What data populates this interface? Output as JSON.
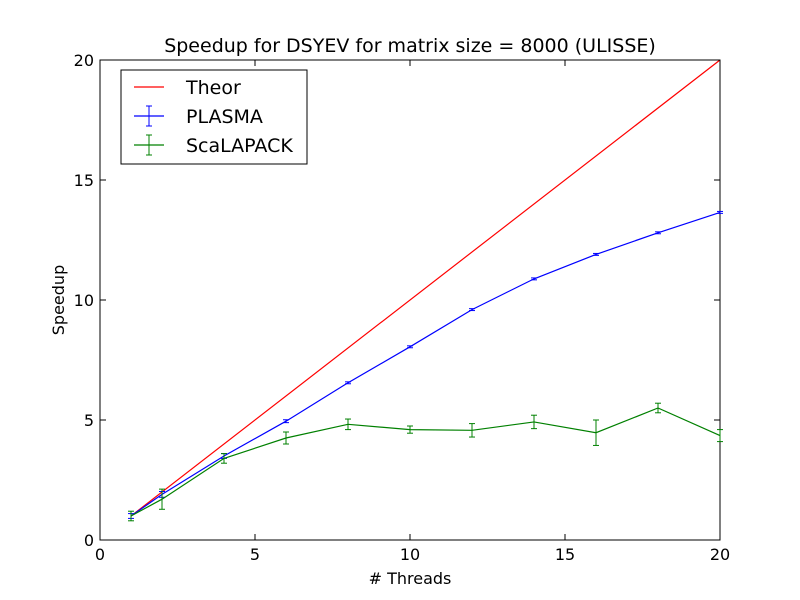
{
  "chart_data": {
    "type": "line",
    "title": "Speedup for DSYEV for matrix size = 8000 (ULISSE)",
    "xlabel": "# Threads",
    "ylabel": "Speedup",
    "xlim": [
      0,
      20
    ],
    "ylim": [
      0,
      20
    ],
    "xticks": [
      0,
      5,
      10,
      15,
      20
    ],
    "yticks": [
      0,
      5,
      10,
      15,
      20
    ],
    "grid": false,
    "legend_position": "top-left",
    "series": [
      {
        "name": "Theor",
        "color": "#ff0000",
        "error_bars": false,
        "x": [
          1,
          20
        ],
        "y": [
          1,
          20
        ]
      },
      {
        "name": "PLASMA",
        "color": "#0000ff",
        "error_bars": true,
        "x": [
          1,
          2,
          4,
          6,
          8,
          10,
          12,
          14,
          16,
          18,
          20
        ],
        "y": [
          1.0,
          1.9,
          3.5,
          4.95,
          6.55,
          8.05,
          9.6,
          10.88,
          11.9,
          12.8,
          13.65
        ],
        "err": [
          0.1,
          0.12,
          0.1,
          0.06,
          0.04,
          0.04,
          0.04,
          0.04,
          0.04,
          0.04,
          0.04
        ]
      },
      {
        "name": "ScaLAPACK",
        "color": "#008000",
        "error_bars": true,
        "x": [
          1,
          2,
          4,
          6,
          8,
          10,
          12,
          14,
          16,
          18,
          20
        ],
        "y": [
          1.0,
          1.7,
          3.4,
          4.25,
          4.82,
          4.6,
          4.57,
          4.92,
          4.47,
          5.5,
          4.35
        ],
        "err": [
          0.2,
          0.42,
          0.2,
          0.25,
          0.22,
          0.15,
          0.28,
          0.28,
          0.53,
          0.2,
          0.25
        ]
      }
    ]
  }
}
